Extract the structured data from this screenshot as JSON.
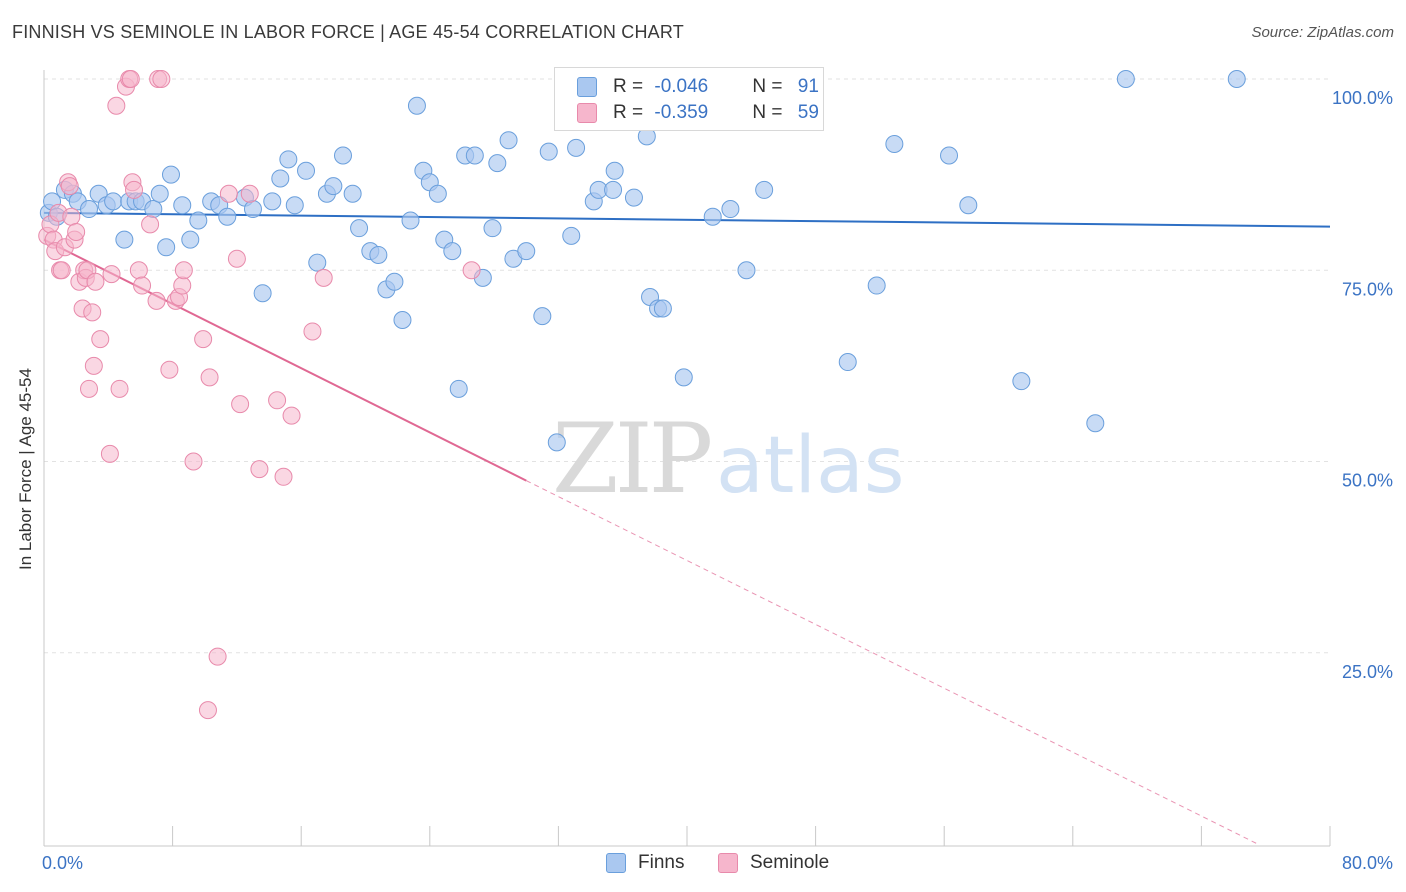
{
  "header": {
    "title": "FINNISH VS SEMINOLE IN LABOR FORCE | AGE 45-54 CORRELATION CHART",
    "source": "Source: ZipAtlas.com"
  },
  "watermark": {
    "zip": "ZIP",
    "atlas": "atlas"
  },
  "legend": {
    "finns": {
      "r_label": "R = ",
      "r_value": "-0.046",
      "n_label": "N = ",
      "n_value": "91"
    },
    "seminole": {
      "r_label": "R = ",
      "r_value": "-0.359",
      "n_label": "N = ",
      "n_value": "59"
    }
  },
  "bottom_legend": {
    "finns": "Finns",
    "seminole": "Seminole"
  },
  "colors": {
    "finns_fill": "#aac8f0",
    "finns_stroke": "#6a9fdc",
    "finns_line": "#2e6fc4",
    "seminole_fill": "#f6b6cc",
    "seminole_stroke": "#e88aab",
    "seminole_line": "#e06893",
    "tick_label": "#3b73c4",
    "grid": "#e2e2e2"
  },
  "chart_data": {
    "type": "scatter",
    "title": "FINNISH VS SEMINOLE IN LABOR FORCE | AGE 45-54 CORRELATION CHART",
    "xlabel": "",
    "ylabel": "In Labor Force | Age 45-54",
    "xlim": [
      0,
      80
    ],
    "ylim": [
      0,
      102
    ],
    "x_tick_labels": [
      "0.0%",
      "80.0%"
    ],
    "y_ticks": [
      25,
      50,
      75,
      100
    ],
    "y_tick_labels": [
      "25.0%",
      "50.0%",
      "75.0%",
      "100.0%"
    ],
    "series": [
      {
        "name": "Finns",
        "trend": {
          "x": [
            0,
            80
          ],
          "y": [
            82.5,
            80.7
          ]
        },
        "points": [
          [
            0.3,
            82.5
          ],
          [
            0.5,
            84
          ],
          [
            0.8,
            82
          ],
          [
            1.3,
            85.5
          ],
          [
            1.8,
            85
          ],
          [
            2.1,
            84
          ],
          [
            2.8,
            83
          ],
          [
            3.4,
            85
          ],
          [
            3.9,
            83.5
          ],
          [
            4.3,
            84
          ],
          [
            5.0,
            79
          ],
          [
            5.3,
            84
          ],
          [
            5.7,
            84
          ],
          [
            6.1,
            84
          ],
          [
            6.8,
            83
          ],
          [
            7.2,
            85
          ],
          [
            7.6,
            78
          ],
          [
            7.9,
            87.5
          ],
          [
            8.6,
            83.5
          ],
          [
            9.1,
            79
          ],
          [
            9.6,
            81.5
          ],
          [
            10.4,
            84
          ],
          [
            10.9,
            83.5
          ],
          [
            11.4,
            82
          ],
          [
            12.5,
            84.5
          ],
          [
            13.0,
            83
          ],
          [
            13.6,
            72
          ],
          [
            14.2,
            84
          ],
          [
            14.7,
            87
          ],
          [
            15.2,
            89.5
          ],
          [
            15.6,
            83.5
          ],
          [
            16.3,
            88
          ],
          [
            17.0,
            76
          ],
          [
            17.6,
            85
          ],
          [
            18.0,
            86
          ],
          [
            18.6,
            90
          ],
          [
            19.2,
            85
          ],
          [
            19.6,
            80.5
          ],
          [
            20.3,
            77.5
          ],
          [
            20.8,
            77
          ],
          [
            21.3,
            72.5
          ],
          [
            21.8,
            73.5
          ],
          [
            22.3,
            68.5
          ],
          [
            22.8,
            81.5
          ],
          [
            23.2,
            96.5
          ],
          [
            23.6,
            88
          ],
          [
            24.0,
            86.5
          ],
          [
            24.5,
            85
          ],
          [
            24.9,
            79
          ],
          [
            25.4,
            77.5
          ],
          [
            25.8,
            59.5
          ],
          [
            26.2,
            90
          ],
          [
            26.8,
            90
          ],
          [
            27.3,
            74
          ],
          [
            27.9,
            80.5
          ],
          [
            28.2,
            89
          ],
          [
            28.9,
            92
          ],
          [
            29.2,
            76.5
          ],
          [
            30.0,
            77.5
          ],
          [
            31.0,
            69
          ],
          [
            31.4,
            90.5
          ],
          [
            31.9,
            52.5
          ],
          [
            32.8,
            79.5
          ],
          [
            33.1,
            91
          ],
          [
            34.2,
            84
          ],
          [
            34.5,
            85.5
          ],
          [
            35.4,
            85.5
          ],
          [
            35.5,
            88
          ],
          [
            36.7,
            84.5
          ],
          [
            37.5,
            92.5
          ],
          [
            37.7,
            71.5
          ],
          [
            38.2,
            70
          ],
          [
            38.5,
            70
          ],
          [
            39.8,
            61
          ],
          [
            41.0,
            100
          ],
          [
            41.6,
            82
          ],
          [
            42.7,
            83
          ],
          [
            43.7,
            75
          ],
          [
            44.8,
            85.5
          ],
          [
            46.7,
            100
          ],
          [
            50.0,
            63
          ],
          [
            51.8,
            73
          ],
          [
            52.9,
            91.5
          ],
          [
            56.3,
            90
          ],
          [
            57.5,
            83.5
          ],
          [
            60.8,
            60.5
          ],
          [
            65.4,
            55
          ],
          [
            67.3,
            100
          ],
          [
            74.2,
            100
          ]
        ]
      },
      {
        "name": "Seminole",
        "trend": {
          "x": [
            0,
            30
          ],
          "y": [
            79,
            47.5
          ]
        },
        "trend_dashed": {
          "x": [
            30,
            75.5
          ],
          "y": [
            47.5,
            0
          ]
        },
        "points": [
          [
            0.2,
            79.5
          ],
          [
            0.4,
            81
          ],
          [
            0.6,
            79
          ],
          [
            0.7,
            77.5
          ],
          [
            0.9,
            82.5
          ],
          [
            1.0,
            75
          ],
          [
            1.1,
            75
          ],
          [
            1.3,
            78
          ],
          [
            1.5,
            86.5
          ],
          [
            1.6,
            86
          ],
          [
            1.7,
            82
          ],
          [
            1.9,
            79
          ],
          [
            2.0,
            80
          ],
          [
            2.2,
            73.5
          ],
          [
            2.4,
            70
          ],
          [
            2.5,
            75
          ],
          [
            2.6,
            74
          ],
          [
            2.7,
            75
          ],
          [
            2.8,
            59.5
          ],
          [
            3.0,
            69.5
          ],
          [
            3.1,
            62.5
          ],
          [
            3.2,
            73.5
          ],
          [
            3.5,
            66
          ],
          [
            4.1,
            51
          ],
          [
            4.2,
            74.5
          ],
          [
            4.5,
            96.5
          ],
          [
            4.7,
            59.5
          ],
          [
            5.1,
            99
          ],
          [
            5.3,
            100
          ],
          [
            5.4,
            100
          ],
          [
            5.5,
            86.5
          ],
          [
            5.6,
            85.5
          ],
          [
            5.9,
            75
          ],
          [
            6.1,
            73
          ],
          [
            6.6,
            81
          ],
          [
            7.0,
            71
          ],
          [
            7.1,
            100
          ],
          [
            7.3,
            100
          ],
          [
            7.8,
            62
          ],
          [
            8.2,
            71
          ],
          [
            8.4,
            71.5
          ],
          [
            8.6,
            73
          ],
          [
            8.7,
            75
          ],
          [
            9.3,
            50
          ],
          [
            9.9,
            66
          ],
          [
            10.2,
            17.5
          ],
          [
            10.3,
            61
          ],
          [
            10.8,
            24.5
          ],
          [
            11.5,
            85
          ],
          [
            12.0,
            76.5
          ],
          [
            12.2,
            57.5
          ],
          [
            12.8,
            85
          ],
          [
            13.4,
            49
          ],
          [
            14.5,
            58
          ],
          [
            14.9,
            48
          ],
          [
            15.4,
            56
          ],
          [
            16.7,
            67
          ],
          [
            17.4,
            74
          ],
          [
            26.6,
            75
          ]
        ]
      }
    ]
  }
}
